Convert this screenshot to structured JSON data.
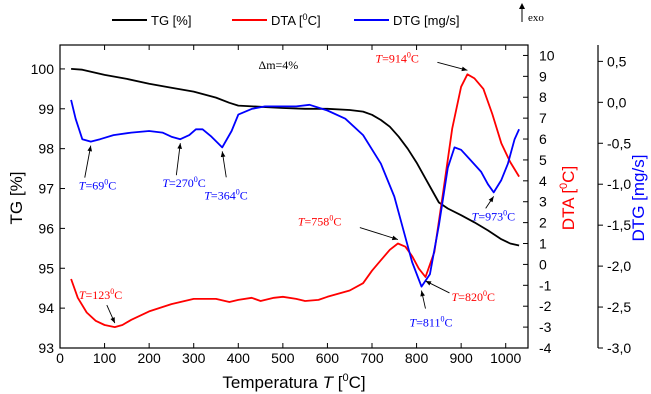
{
  "chart_data": {
    "type": "line",
    "xlabel_main": "Temperatura ",
    "xlabel_var": "T",
    "xlabel_unit_open": " [",
    "xlabel_unit_sup": "0",
    "xlabel_unit_close": "C]",
    "xlim": [
      0,
      1050
    ],
    "x_ticks": [
      0,
      100,
      200,
      300,
      400,
      500,
      600,
      700,
      800,
      900,
      1000
    ],
    "axes": {
      "tg": {
        "label": "TG [%]",
        "lim": [
          93,
          100.6
        ],
        "ticks": [
          93,
          94,
          95,
          96,
          97,
          98,
          99,
          100
        ],
        "color": "#000000"
      },
      "dta": {
        "label_main": "DTA [",
        "label_sup": "0",
        "label_end": "C]",
        "lim": [
          -4,
          10.5
        ],
        "ticks": [
          -4,
          -3,
          -2,
          -1,
          0,
          1,
          2,
          3,
          4,
          5,
          6,
          7,
          8,
          9,
          10
        ],
        "color": "#ff0000"
      },
      "dtg": {
        "label": "DTG [mg/s]",
        "lim": [
          -3.0,
          0.7
        ],
        "ticks": [
          "0,5",
          "0,0",
          "-0,5",
          "-1,0",
          "-1,5",
          "-2,0",
          "-2,5",
          "-3,0"
        ],
        "tick_values": [
          0.5,
          0.0,
          -0.5,
          -1.0,
          -1.5,
          -2.0,
          -2.5,
          -3.0
        ],
        "color": "#0000ff"
      }
    },
    "series": [
      {
        "name": "TG [%]",
        "axis": "tg",
        "color": "#000000",
        "x": [
          25,
          50,
          100,
          150,
          200,
          250,
          300,
          350,
          380,
          400,
          450,
          500,
          550,
          600,
          650,
          680,
          700,
          720,
          740,
          760,
          780,
          800,
          820,
          840,
          850,
          870,
          900,
          930,
          960,
          990,
          1010,
          1030
        ],
        "y": [
          100.0,
          99.98,
          99.85,
          99.75,
          99.63,
          99.53,
          99.43,
          99.28,
          99.15,
          99.08,
          99.05,
          99.02,
          99.0,
          99.0,
          98.97,
          98.93,
          98.85,
          98.72,
          98.55,
          98.3,
          98.0,
          97.65,
          97.25,
          96.85,
          96.65,
          96.5,
          96.33,
          96.15,
          95.95,
          95.73,
          95.62,
          95.57
        ]
      },
      {
        "name": "DTA [0C]",
        "axis": "dta",
        "color": "#ff0000",
        "x": [
          25,
          40,
          60,
          80,
          100,
          123,
          140,
          160,
          200,
          250,
          300,
          350,
          380,
          400,
          430,
          450,
          480,
          500,
          530,
          550,
          580,
          600,
          650,
          680,
          700,
          720,
          740,
          758,
          775,
          790,
          805,
          820,
          840,
          860,
          880,
          900,
          914,
          930,
          950,
          970,
          990,
          1010,
          1030
        ],
        "y": [
          -0.7,
          -1.6,
          -2.3,
          -2.7,
          -2.9,
          -3.0,
          -2.9,
          -2.65,
          -2.25,
          -1.9,
          -1.65,
          -1.65,
          -1.8,
          -1.7,
          -1.6,
          -1.75,
          -1.6,
          -1.55,
          -1.65,
          -1.75,
          -1.7,
          -1.55,
          -1.25,
          -0.9,
          -0.3,
          0.2,
          0.7,
          1.0,
          0.85,
          0.4,
          -0.2,
          -0.6,
          0.6,
          3.5,
          6.5,
          8.5,
          9.1,
          8.9,
          8.4,
          7.2,
          5.8,
          4.9,
          4.2
        ]
      },
      {
        "name": "DTG [mg/s]",
        "axis": "dtg",
        "color": "#0000ff",
        "x": [
          25,
          35,
          50,
          69,
          90,
          120,
          160,
          200,
          230,
          250,
          270,
          290,
          305,
          320,
          340,
          364,
          385,
          400,
          430,
          460,
          500,
          530,
          560,
          600,
          640,
          680,
          720,
          750,
          770,
          790,
          811,
          830,
          850,
          870,
          885,
          900,
          920,
          945,
          960,
          973,
          990,
          1005,
          1020,
          1030
        ],
        "y": [
          0.03,
          -0.2,
          -0.45,
          -0.48,
          -0.45,
          -0.4,
          -0.37,
          -0.35,
          -0.37,
          -0.42,
          -0.45,
          -0.4,
          -0.33,
          -0.33,
          -0.42,
          -0.55,
          -0.35,
          -0.15,
          -0.08,
          -0.05,
          -0.05,
          -0.05,
          -0.03,
          -0.1,
          -0.2,
          -0.4,
          -0.75,
          -1.15,
          -1.55,
          -1.95,
          -2.25,
          -2.1,
          -1.5,
          -0.8,
          -0.55,
          -0.58,
          -0.7,
          -0.85,
          -1.0,
          -1.1,
          -0.95,
          -0.75,
          -0.45,
          -0.33
        ]
      }
    ],
    "legend": [
      {
        "label": "TG [%]",
        "color": "#000000"
      },
      {
        "label_main": "DTA [",
        "label_sup": "0",
        "label_end": "C]",
        "color": "#ff0000"
      },
      {
        "label": "DTG [mg/s]",
        "color": "#0000ff"
      }
    ],
    "annotations": {
      "exo": "exo",
      "delta_m": "Δm=4%",
      "peaks": [
        {
          "var": "T",
          "text": "=69",
          "sup": "0",
          "end": "C",
          "color": "#0000ff",
          "series": "dtg",
          "x": 69
        },
        {
          "var": "T",
          "text": "=270",
          "sup": "0",
          "end": "C",
          "color": "#0000ff",
          "series": "dtg",
          "x": 270
        },
        {
          "var": "T",
          "text": "=364",
          "sup": "0",
          "end": "C",
          "color": "#0000ff",
          "series": "dtg",
          "x": 364
        },
        {
          "var": "T",
          "text": "=973",
          "sup": "0",
          "end": "C",
          "color": "#0000ff",
          "series": "dtg",
          "x": 973
        },
        {
          "var": "T",
          "text": "=811",
          "sup": "0",
          "end": "C",
          "color": "#0000ff",
          "series": "dtg",
          "x": 811
        },
        {
          "var": "T",
          "text": "=123",
          "sup": "0",
          "end": "C",
          "color": "#ff0000",
          "series": "dta",
          "x": 123
        },
        {
          "var": "T",
          "text": "=758",
          "sup": "0",
          "end": "C",
          "color": "#ff0000",
          "series": "dta",
          "x": 758
        },
        {
          "var": "T",
          "text": "=820",
          "sup": "0",
          "end": "C",
          "color": "#ff0000",
          "series": "dta",
          "x": 820
        },
        {
          "var": "T",
          "text": "=914",
          "sup": "0",
          "end": "C",
          "color": "#ff0000",
          "series": "dta",
          "x": 914
        }
      ]
    }
  }
}
